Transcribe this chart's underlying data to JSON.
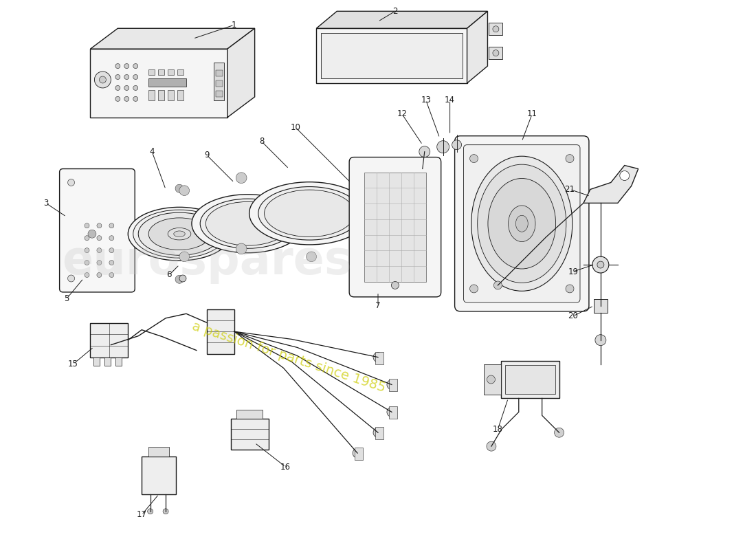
{
  "background_color": "#ffffff",
  "line_color": "#1a1a1a",
  "watermark_text1": "eurospares",
  "watermark_text2": "a passion for parts since 1985",
  "watermark_color1": "#c8c8c8",
  "watermark_color2": "#cccc00",
  "fig_width": 11.0,
  "fig_height": 8.0,
  "dpi": 100
}
